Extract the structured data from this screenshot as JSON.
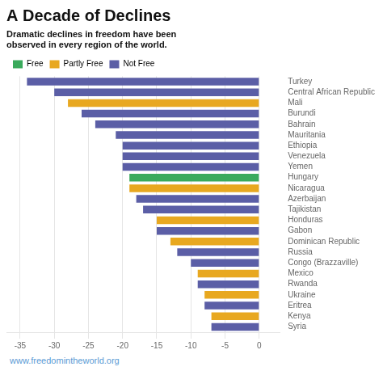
{
  "chart_data": {
    "type": "bar",
    "orientation": "horizontal",
    "title": "A Decade of Declines",
    "subtitle": "Dramatic declines in freedom have been\nobserved in every region of the world.",
    "footer": "www.freedomintheworld.org",
    "categories": [
      "Turkey",
      "Central African Republic",
      "Mali",
      "Burundi",
      "Bahrain",
      "Mauritania",
      "Ethiopia",
      "Venezuela",
      "Yemen",
      "Hungary",
      "Nicaragua",
      "Azerbaijan",
      "Tajikistan",
      "Honduras",
      "Gabon",
      "Dominican Republic",
      "Russia",
      "Congo (Brazzaville)",
      "Mexico",
      "Rwanda",
      "Ukraine",
      "Eritrea",
      "Kenya",
      "Syria"
    ],
    "values": [
      -34,
      -30,
      -28,
      -26,
      -24,
      -21,
      -20,
      -20,
      -20,
      -19,
      -19,
      -18,
      -17,
      -15,
      -15,
      -13,
      -12,
      -10,
      -9,
      -9,
      -8,
      -8,
      -7,
      -7
    ],
    "colors": [
      "#5b5ea6",
      "#5b5ea6",
      "#e8a820",
      "#5b5ea6",
      "#5b5ea6",
      "#5b5ea6",
      "#5b5ea6",
      "#5b5ea6",
      "#5b5ea6",
      "#3aaa5c",
      "#e8a820",
      "#5b5ea6",
      "#5b5ea6",
      "#e8a820",
      "#5b5ea6",
      "#e8a820",
      "#5b5ea6",
      "#5b5ea6",
      "#e8a820",
      "#5b5ea6",
      "#e8a820",
      "#5b5ea6",
      "#e8a820",
      "#5b5ea6"
    ],
    "xlim": [
      -37,
      3
    ],
    "xticks": [
      -35,
      -30,
      -25,
      -20,
      -15,
      -10,
      -5,
      0
    ],
    "grid": true,
    "legend": "top",
    "legend_entries": [
      {
        "name": "Free",
        "color": "#3aaa5c"
      },
      {
        "name": "Partly Free",
        "color": "#e8a820"
      },
      {
        "name": "Not Free",
        "color": "#5b5ea6"
      }
    ]
  }
}
